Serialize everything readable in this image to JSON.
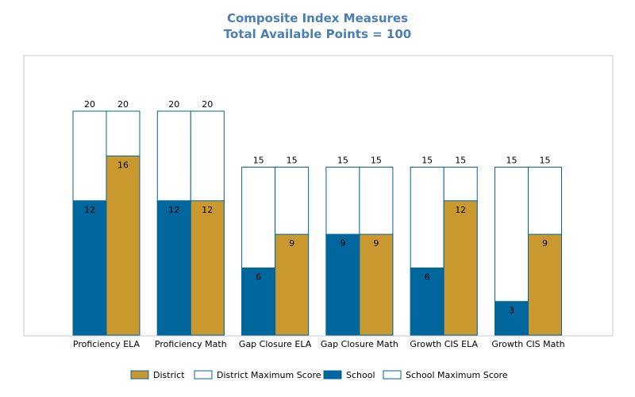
{
  "chart_data": {
    "type": "bar",
    "title": "Composite Index Measures",
    "subtitle": "Total Available Points = 100",
    "categories": [
      "Proficiency ELA",
      "Proficiency Math",
      "Gap Closure ELA",
      "Gap Closure Math",
      "Growth CIS ELA",
      "Growth CIS Math"
    ],
    "series": [
      {
        "name": "School",
        "values": [
          12,
          12,
          6,
          9,
          6,
          3
        ],
        "color": "#00669b"
      },
      {
        "name": "School Maximum Score",
        "values": [
          20,
          20,
          15,
          15,
          15,
          15
        ],
        "color": "#ffffff"
      },
      {
        "name": "District",
        "values": [
          16,
          12,
          9,
          9,
          12,
          9
        ],
        "color": "#c9992f"
      },
      {
        "name": "District Maximum Score",
        "values": [
          20,
          20,
          15,
          15,
          15,
          15
        ],
        "color": "#ffffff"
      }
    ],
    "ylim": [
      0,
      24
    ],
    "grid": false,
    "legend": {
      "position": "bottom",
      "entries": [
        "District",
        "District Maximum Score",
        "School",
        "School Maximum Score"
      ]
    }
  }
}
